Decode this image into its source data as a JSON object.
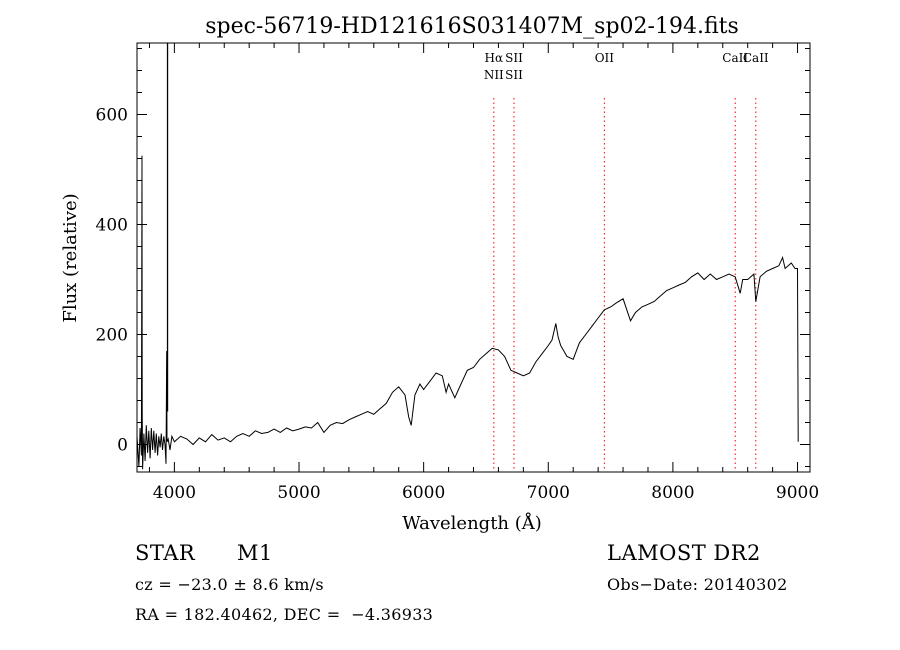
{
  "chart_data": {
    "type": "line",
    "title": "spec-56719-HD121616S031407M_sp02-194.fits",
    "xlabel": "Wavelength (Å)",
    "ylabel": "Flux (relative)",
    "xlim": [
      3700,
      9100
    ],
    "ylim": [
      -50,
      730
    ],
    "x_ticks": [
      4000,
      5000,
      6000,
      7000,
      8000,
      9000
    ],
    "y_ticks": [
      0,
      200,
      400,
      600
    ],
    "grid": false,
    "line_color": "#000000",
    "marker_color": "#ff0000",
    "series": [
      {
        "points": [
          [
            3700,
            15
          ],
          [
            3715,
            -40
          ],
          [
            3725,
            30
          ],
          [
            3735,
            -20
          ],
          [
            3740,
            525
          ],
          [
            3742,
            60
          ],
          [
            3745,
            -45
          ],
          [
            3755,
            20
          ],
          [
            3765,
            -30
          ],
          [
            3775,
            35
          ],
          [
            3785,
            -15
          ],
          [
            3795,
            25
          ],
          [
            3805,
            -25
          ],
          [
            3815,
            30
          ],
          [
            3825,
            -10
          ],
          [
            3835,
            25
          ],
          [
            3845,
            -15
          ],
          [
            3855,
            20
          ],
          [
            3865,
            -20
          ],
          [
            3875,
            15
          ],
          [
            3885,
            -5
          ],
          [
            3895,
            20
          ],
          [
            3905,
            -10
          ],
          [
            3915,
            15
          ],
          [
            3925,
            0
          ],
          [
            3933,
            -35
          ],
          [
            3938,
            170
          ],
          [
            3941,
            5
          ],
          [
            3950,
            10
          ],
          [
            3965,
            -10
          ],
          [
            3980,
            15
          ],
          [
            4000,
            5
          ],
          [
            4050,
            15
          ],
          [
            4100,
            10
          ],
          [
            4150,
            0
          ],
          [
            4200,
            12
          ],
          [
            4250,
            5
          ],
          [
            4300,
            18
          ],
          [
            4350,
            8
          ],
          [
            4400,
            12
          ],
          [
            4450,
            5
          ],
          [
            4500,
            15
          ],
          [
            4550,
            20
          ],
          [
            4600,
            15
          ],
          [
            4650,
            25
          ],
          [
            4700,
            20
          ],
          [
            4750,
            22
          ],
          [
            4800,
            28
          ],
          [
            4850,
            22
          ],
          [
            4900,
            30
          ],
          [
            4950,
            25
          ],
          [
            5000,
            28
          ],
          [
            5050,
            32
          ],
          [
            5100,
            30
          ],
          [
            5150,
            40
          ],
          [
            5200,
            22
          ],
          [
            5250,
            35
          ],
          [
            5300,
            40
          ],
          [
            5350,
            38
          ],
          [
            5400,
            45
          ],
          [
            5450,
            50
          ],
          [
            5500,
            55
          ],
          [
            5550,
            60
          ],
          [
            5600,
            55
          ],
          [
            5650,
            65
          ],
          [
            5700,
            75
          ],
          [
            5750,
            95
          ],
          [
            5800,
            105
          ],
          [
            5850,
            90
          ],
          [
            5880,
            50
          ],
          [
            5900,
            35
          ],
          [
            5930,
            90
          ],
          [
            5970,
            110
          ],
          [
            6000,
            100
          ],
          [
            6050,
            115
          ],
          [
            6100,
            130
          ],
          [
            6150,
            125
          ],
          [
            6180,
            95
          ],
          [
            6200,
            110
          ],
          [
            6250,
            85
          ],
          [
            6280,
            100
          ],
          [
            6300,
            110
          ],
          [
            6350,
            135
          ],
          [
            6400,
            140
          ],
          [
            6450,
            155
          ],
          [
            6500,
            165
          ],
          [
            6550,
            175
          ],
          [
            6600,
            172
          ],
          [
            6650,
            160
          ],
          [
            6700,
            135
          ],
          [
            6750,
            130
          ],
          [
            6800,
            125
          ],
          [
            6850,
            130
          ],
          [
            6900,
            150
          ],
          [
            6950,
            165
          ],
          [
            7000,
            180
          ],
          [
            7030,
            190
          ],
          [
            7060,
            220
          ],
          [
            7080,
            195
          ],
          [
            7100,
            180
          ],
          [
            7150,
            160
          ],
          [
            7200,
            155
          ],
          [
            7250,
            185
          ],
          [
            7300,
            200
          ],
          [
            7350,
            215
          ],
          [
            7400,
            230
          ],
          [
            7450,
            245
          ],
          [
            7500,
            250
          ],
          [
            7550,
            258
          ],
          [
            7600,
            265
          ],
          [
            7630,
            245
          ],
          [
            7660,
            225
          ],
          [
            7700,
            240
          ],
          [
            7750,
            250
          ],
          [
            7800,
            255
          ],
          [
            7850,
            260
          ],
          [
            7900,
            270
          ],
          [
            7950,
            280
          ],
          [
            8000,
            285
          ],
          [
            8050,
            290
          ],
          [
            8100,
            295
          ],
          [
            8150,
            305
          ],
          [
            8200,
            312
          ],
          [
            8250,
            300
          ],
          [
            8300,
            310
          ],
          [
            8350,
            300
          ],
          [
            8400,
            305
          ],
          [
            8450,
            310
          ],
          [
            8500,
            305
          ],
          [
            8540,
            275
          ],
          [
            8560,
            300
          ],
          [
            8600,
            300
          ],
          [
            8650,
            310
          ],
          [
            8665,
            260
          ],
          [
            8700,
            305
          ],
          [
            8750,
            315
          ],
          [
            8800,
            320
          ],
          [
            8850,
            325
          ],
          [
            8880,
            340
          ],
          [
            8900,
            320
          ],
          [
            8950,
            330
          ],
          [
            8980,
            320
          ],
          [
            9000,
            320
          ],
          [
            9005,
            5
          ]
        ]
      }
    ],
    "lines": [
      {
        "x": 6563,
        "labels": [
          "Hα",
          "NII"
        ]
      },
      {
        "x": 6725,
        "labels": [
          "SII",
          "SII"
        ]
      },
      {
        "x": 7450,
        "labels": [
          "OII"
        ]
      },
      {
        "x": 8500,
        "labels": [
          "CaII"
        ]
      },
      {
        "x": 8665,
        "labels": [
          "CaII"
        ]
      }
    ]
  },
  "info": {
    "object_type": "STAR",
    "subclass": "M1",
    "survey": "LAMOST DR2",
    "redshift": "cz = −23.0 ± 8.6 km/s",
    "obs_date": "Obs−Date: 20140302",
    "coords": "RA = 182.40462, DEC =  −4.36933"
  }
}
